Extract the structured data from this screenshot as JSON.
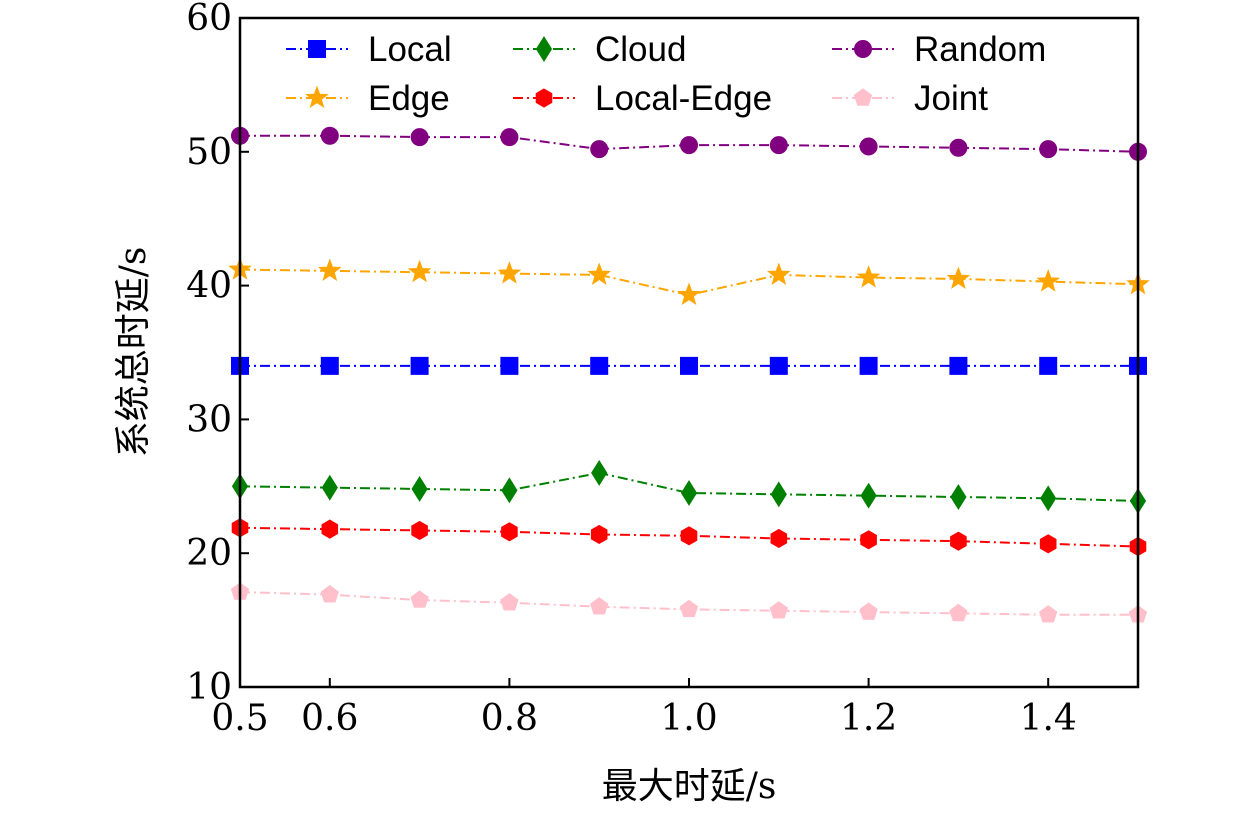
{
  "chart_data": {
    "type": "line",
    "title": "",
    "xlabel": "最大时延/s",
    "ylabel": "系统总时延/s",
    "xlim": [
      0.5,
      1.5
    ],
    "ylim": [
      10,
      60
    ],
    "x": [
      0.5,
      0.6,
      0.7,
      0.8,
      0.9,
      1.0,
      1.1,
      1.2,
      1.3,
      1.4,
      1.5
    ],
    "xticks": [
      0.5,
      0.6,
      0.8,
      1.0,
      1.2,
      1.4
    ],
    "xtick_labels": [
      "0.5",
      "0.6",
      "0.8",
      "1.0",
      "1.2",
      "1.4"
    ],
    "yticks": [
      10,
      20,
      30,
      40,
      50,
      60
    ],
    "ytick_labels": [
      "10",
      "20",
      "30",
      "40",
      "50",
      "60"
    ],
    "grid": false,
    "legend_position": "top",
    "series": [
      {
        "name": "Local",
        "color": "#0000ff",
        "marker": "square",
        "values": [
          34,
          34,
          34,
          34,
          34,
          34,
          34,
          34,
          34,
          34,
          34
        ]
      },
      {
        "name": "Cloud",
        "color": "#008000",
        "marker": "diamond",
        "values": [
          25,
          24.9,
          24.8,
          24.7,
          26,
          24.5,
          24.4,
          24.3,
          24.2,
          24.1,
          23.9
        ]
      },
      {
        "name": "Random",
        "color": "#800080",
        "marker": "circle",
        "values": [
          51.2,
          51.2,
          51.1,
          51.1,
          50.2,
          50.5,
          50.5,
          50.4,
          50.3,
          50.2,
          50
        ]
      },
      {
        "name": "Edge",
        "color": "#ffa500",
        "marker": "star",
        "values": [
          41.2,
          41.1,
          41,
          40.9,
          40.8,
          39.3,
          40.8,
          40.6,
          40.5,
          40.3,
          40.1
        ]
      },
      {
        "name": "Local-Edge",
        "color": "#ff0000",
        "marker": "hexagon",
        "values": [
          21.9,
          21.8,
          21.7,
          21.6,
          21.4,
          21.3,
          21.1,
          21,
          20.9,
          20.7,
          20.5
        ]
      },
      {
        "name": "Joint",
        "color": "#ffc0cb",
        "marker": "pentagon",
        "values": [
          17.1,
          16.9,
          16.5,
          16.3,
          16,
          15.8,
          15.7,
          15.6,
          15.5,
          15.4,
          15.4
        ]
      }
    ]
  }
}
